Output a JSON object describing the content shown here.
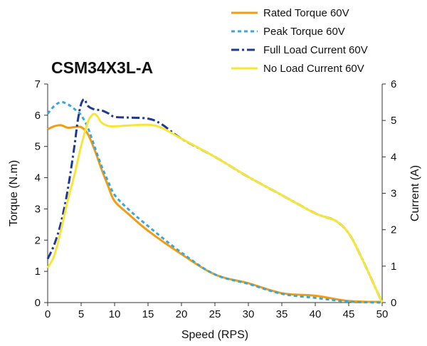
{
  "chart_data": {
    "type": "line",
    "title": "CSM34X3L-A",
    "xlabel": "Speed (RPS)",
    "ylabel": "Torque (N.m)",
    "y2label": "Current (A)",
    "xlim": [
      0,
      50
    ],
    "ylim": [
      0,
      7
    ],
    "y2lim": [
      0,
      6
    ],
    "xticks": [
      0,
      5,
      10,
      15,
      20,
      25,
      30,
      35,
      40,
      45,
      50
    ],
    "yticks": [
      0,
      1,
      2,
      3,
      4,
      5,
      6,
      7
    ],
    "y2ticks": [
      0,
      1,
      2,
      3,
      4,
      5,
      6
    ],
    "grid": false,
    "legend_position": "top-right",
    "series": [
      {
        "name": "Rated Torque 60V",
        "axis": "left",
        "color": "#F39C12",
        "style": "solid",
        "x": [
          0,
          1,
          2,
          3,
          4,
          5,
          6,
          7,
          8,
          9,
          10,
          12,
          15,
          20,
          25,
          30,
          35,
          40,
          45,
          50
        ],
        "y": [
          5.55,
          5.65,
          5.68,
          5.6,
          5.62,
          5.62,
          5.4,
          4.9,
          4.3,
          3.75,
          3.25,
          2.85,
          2.3,
          1.55,
          0.9,
          0.62,
          0.3,
          0.22,
          0.05,
          0.02
        ]
      },
      {
        "name": "Peak Torque 60V",
        "axis": "left",
        "color": "#3AA7D9",
        "style": "dashed",
        "x": [
          0,
          1,
          2,
          3,
          4,
          5,
          6,
          7,
          8,
          9,
          10,
          12,
          15,
          20,
          25,
          30,
          35,
          40,
          45,
          50
        ],
        "y": [
          6.05,
          6.3,
          6.42,
          6.35,
          6.2,
          6.0,
          5.6,
          5.0,
          4.4,
          3.9,
          3.45,
          3.0,
          2.45,
          1.6,
          0.9,
          0.6,
          0.28,
          0.15,
          0.03,
          0.0
        ]
      },
      {
        "name": "Full Load Current 60V",
        "axis": "right",
        "color": "#1F3A93",
        "style": "dashdot",
        "x": [
          0,
          1,
          2,
          3,
          4,
          4.5,
          5,
          5.5,
          6,
          7,
          8,
          9,
          10,
          12,
          15,
          17,
          20,
          25,
          30,
          35,
          40,
          43,
          45,
          47,
          50
        ],
        "y": [
          1.2,
          1.6,
          2.2,
          3.1,
          4.3,
          5.0,
          5.45,
          5.58,
          5.4,
          5.3,
          5.28,
          5.2,
          5.1,
          5.08,
          5.05,
          4.9,
          4.5,
          4.0,
          3.45,
          2.95,
          2.45,
          2.25,
          1.9,
          1.2,
          0.0
        ]
      },
      {
        "name": "No Load Current 60V",
        "axis": "right",
        "color": "#F5E638",
        "style": "solid",
        "x": [
          0,
          1,
          2,
          3,
          4,
          5,
          6,
          6.5,
          7,
          7.5,
          8,
          9,
          10,
          12,
          15,
          17,
          20,
          25,
          30,
          35,
          40,
          43,
          45,
          47,
          50
        ],
        "y": [
          0.95,
          1.3,
          2.0,
          2.8,
          3.5,
          4.3,
          4.95,
          5.12,
          5.18,
          5.1,
          4.95,
          4.85,
          4.84,
          4.86,
          4.88,
          4.8,
          4.5,
          4.0,
          3.45,
          2.95,
          2.45,
          2.25,
          1.9,
          1.2,
          0.0
        ]
      }
    ]
  }
}
